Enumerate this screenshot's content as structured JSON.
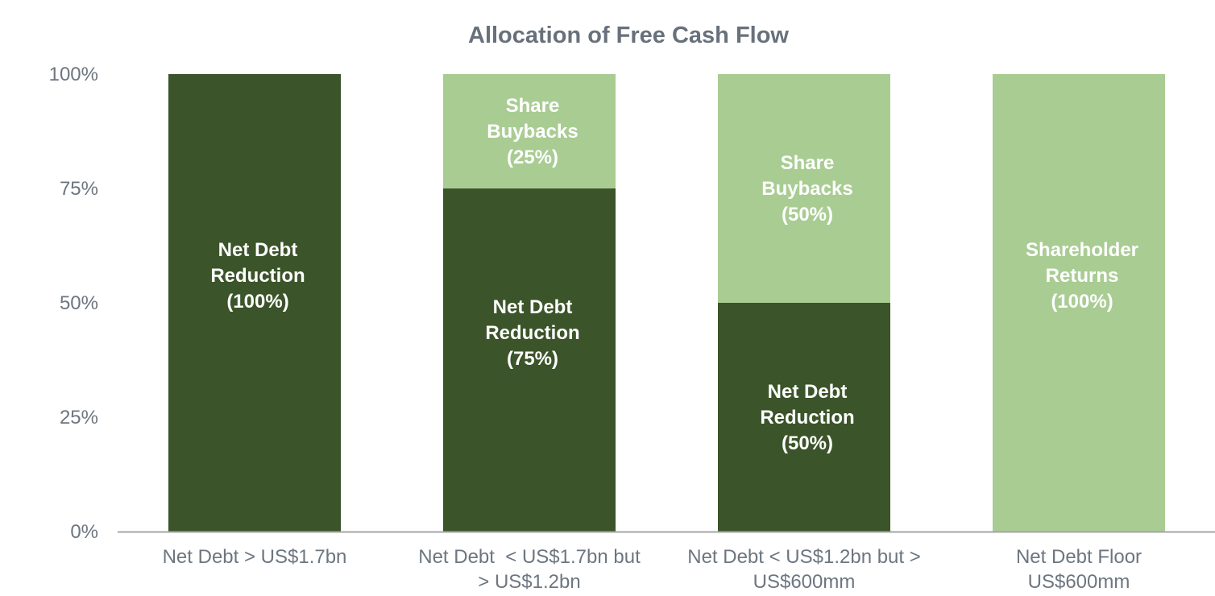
{
  "chart_data": {
    "type": "bar",
    "stacked": true,
    "percent": true,
    "title": "Allocation of Free Cash Flow",
    "xlabel": "",
    "ylabel": "",
    "ylim": [
      0,
      100
    ],
    "yticks": [
      "0%",
      "25%",
      "50%",
      "75%",
      "100%"
    ],
    "grid": false,
    "categories": [
      [
        "Net Debt > US$1.7bn"
      ],
      [
        "Net Debt  < US$1.7bn but",
        "> US$1.2bn"
      ],
      [
        "Net Debt < US$1.2bn but >",
        "US$600mm"
      ],
      [
        "Net Debt Floor",
        "US$600mm"
      ]
    ],
    "series": [
      {
        "color": "#3b5429",
        "values": [
          100,
          75,
          50,
          0
        ],
        "labels": [
          [
            "Net Debt",
            "Reduction",
            "(100%)"
          ],
          [
            "Net Debt",
            "Reduction",
            "(75%)"
          ],
          [
            "Net Debt",
            "Reduction",
            "(50%)"
          ],
          []
        ]
      },
      {
        "color": "#a9cc93",
        "values": [
          0,
          25,
          50,
          100
        ],
        "labels": [
          [],
          [
            "Share",
            "Buybacks",
            "(25%)"
          ],
          [
            "Share",
            "Buybacks",
            "(50%)"
          ],
          [
            "Shareholder",
            "Returns",
            "(100%)"
          ]
        ]
      }
    ]
  }
}
